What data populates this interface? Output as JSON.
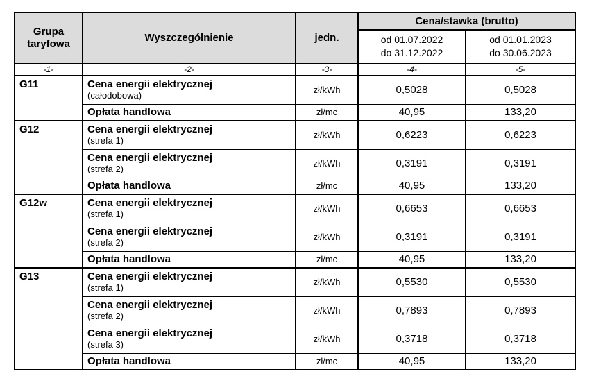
{
  "colors": {
    "header_bg": "#dcdcdc",
    "border": "#000000",
    "text": "#000000",
    "page_bg": "#ffffff"
  },
  "table": {
    "header": {
      "group_col": "Grupa taryfowa",
      "spec_col": "Wyszczególnienie",
      "unit_col": "jedn.",
      "price_col": "Cena/stawka (brutto)",
      "period1": {
        "line1": "od 01.07.2022",
        "line2": "do 31.12.2022"
      },
      "period2": {
        "line1": "od 01.01.2023",
        "line2": "do 30.06.2023"
      },
      "numbering": [
        "-1-",
        "-2-",
        "-3-",
        "-4-",
        "-5-"
      ]
    },
    "groups": [
      {
        "name": "G11",
        "rows": [
          {
            "label": "Cena energii elektrycznej",
            "sublabel": "(całodobowa)",
            "unit": "zł/kWh",
            "values": [
              "0,5028",
              "0,5028"
            ]
          },
          {
            "label": "Opłata handlowa",
            "sublabel": "",
            "unit": "zł/mc",
            "values": [
              "40,95",
              "133,20"
            ]
          }
        ]
      },
      {
        "name": "G12",
        "rows": [
          {
            "label": "Cena energii elektrycznej",
            "sublabel": "(strefa 1)",
            "unit": "zł/kWh",
            "values": [
              "0,6223",
              "0,6223"
            ]
          },
          {
            "label": "Cena energii elektrycznej",
            "sublabel": "(strefa 2)",
            "unit": "zł/kWh",
            "values": [
              "0,3191",
              "0,3191"
            ]
          },
          {
            "label": "Opłata handlowa",
            "sublabel": "",
            "unit": "zł/mc",
            "values": [
              "40,95",
              "133,20"
            ]
          }
        ]
      },
      {
        "name": "G12w",
        "rows": [
          {
            "label": "Cena energii elektrycznej",
            "sublabel": "(strefa 1)",
            "unit": "zł/kWh",
            "values": [
              "0,6653",
              "0,6653"
            ]
          },
          {
            "label": "Cena energii elektrycznej",
            "sublabel": "(strefa 2)",
            "unit": "zł/kWh",
            "values": [
              "0,3191",
              "0,3191"
            ]
          },
          {
            "label": "Opłata handlowa",
            "sublabel": "",
            "unit": "zł/mc",
            "values": [
              "40,95",
              "133,20"
            ]
          }
        ]
      },
      {
        "name": "G13",
        "rows": [
          {
            "label": "Cena energii elektrycznej",
            "sublabel": "(strefa 1)",
            "unit": "zł/kWh",
            "values": [
              "0,5530",
              "0,5530"
            ]
          },
          {
            "label": "Cena energii elektrycznej",
            "sublabel": "(strefa 2)",
            "unit": "zł/kWh",
            "values": [
              "0,7893",
              "0,7893"
            ]
          },
          {
            "label": "Cena energii elektrycznej",
            "sublabel": "(strefa 3)",
            "unit": "zł/kWh",
            "values": [
              "0,3718",
              "0,3718"
            ]
          },
          {
            "label": "Opłata handlowa",
            "sublabel": "",
            "unit": "zł/mc",
            "values": [
              "40,95",
              "133,20"
            ]
          }
        ]
      }
    ]
  }
}
